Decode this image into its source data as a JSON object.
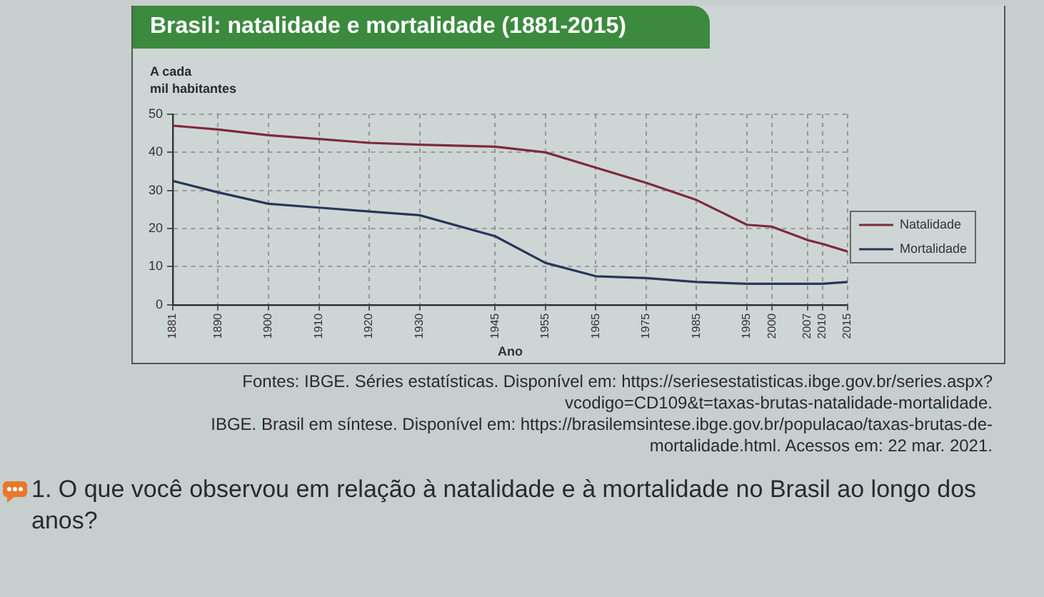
{
  "chart_data": {
    "type": "line",
    "title": "Brasil: natalidade e mortalidade (1881-2015)",
    "ylabel": "A cada\nmil habitantes",
    "xlabel": "Ano",
    "x": [
      1881,
      1890,
      1900,
      1910,
      1920,
      1930,
      1945,
      1955,
      1965,
      1975,
      1985,
      1995,
      2000,
      2007,
      2010,
      2015
    ],
    "series": [
      {
        "name": "Natalidade",
        "color": "#7d2a3c",
        "values": [
          47,
          46,
          44.5,
          43.5,
          42.5,
          42,
          41.5,
          40,
          36,
          32,
          27.5,
          21,
          20.5,
          17,
          16,
          14
        ]
      },
      {
        "name": "Mortalidade",
        "color": "#27375a",
        "values": [
          32.5,
          29.5,
          26.5,
          25.5,
          24.5,
          23.5,
          18,
          11,
          7.5,
          7,
          6,
          5.5,
          5.5,
          5.5,
          5.5,
          6
        ]
      }
    ],
    "xlim": [
      1881,
      2015
    ],
    "xticks": [
      1881,
      1890,
      1900,
      1910,
      1920,
      1930,
      1945,
      1955,
      1965,
      1975,
      1985,
      1995,
      2000,
      2007,
      2010,
      2015
    ],
    "ylim": [
      0,
      50
    ],
    "yticks": [
      0,
      10,
      20,
      30,
      40,
      50
    ],
    "grid": true,
    "legend": "right",
    "marker": "none",
    "line_style": "solid",
    "annotations": [
      "Fontes: IBGE. Séries estatísticas. Disponível em: https://seriesestatisticas.ibge.gov.br/series.aspx?vcodigo=CD109&t=taxas-brutas-natalidade-mortalidade.",
      "IBGE. Brasil em síntese. Disponível em: https://brasilemsintese.ibge.gov.br/populacao/taxas-brutas-de-mortalidade.html. Acessos em: 22 mar. 2021.",
      "1. O que você observou em relação à natalidade e à mortalidade no Brasil ao longo dos anos?"
    ]
  }
}
